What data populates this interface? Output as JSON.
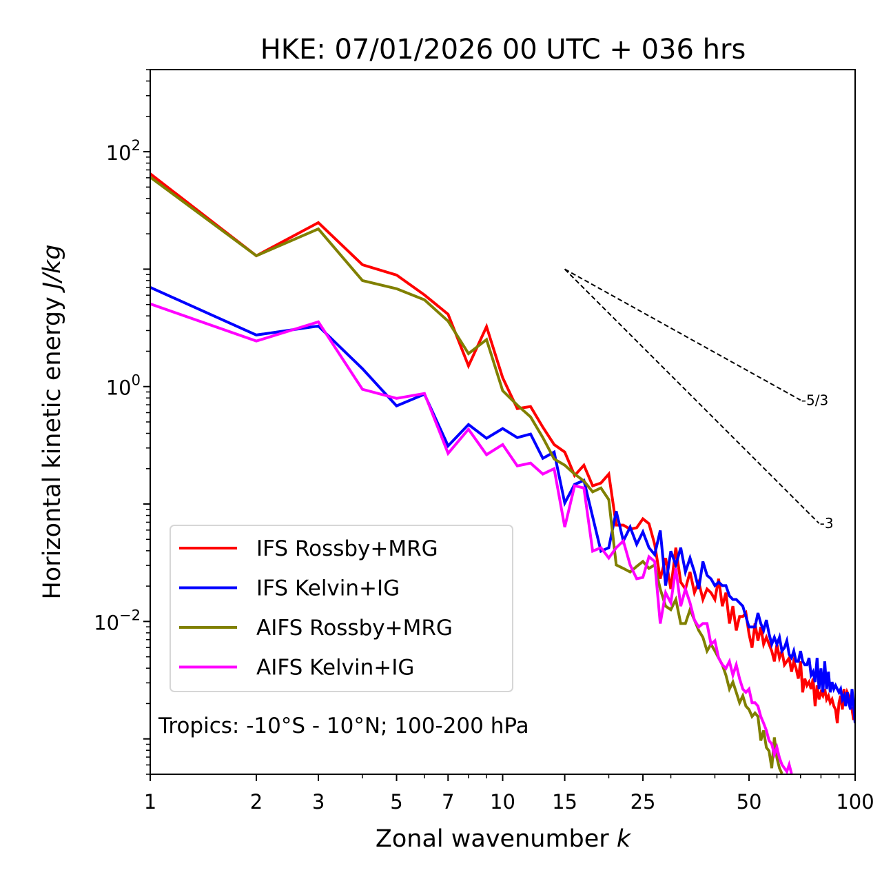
{
  "chart_data": {
    "type": "line",
    "title": "HKE: 07/01/2026 00 UTC + 036 hrs",
    "xlabel": "Zonal wavenumber",
    "xlabel_italic": "k",
    "ylabel": "Horizontal kinetic energy",
    "ylabel_italic": "J/kg",
    "xscale": "log",
    "yscale": "log",
    "xlim": [
      1,
      100
    ],
    "ylim": [
      0.0005,
      500
    ],
    "x_ticks": [
      {
        "value": 1,
        "label": "1"
      },
      {
        "value": 2,
        "label": "2"
      },
      {
        "value": 3,
        "label": "3"
      },
      {
        "value": 5,
        "label": "5"
      },
      {
        "value": 7,
        "label": "7"
      },
      {
        "value": 10,
        "label": "10"
      },
      {
        "value": 15,
        "label": "15"
      },
      {
        "value": 25,
        "label": "25"
      },
      {
        "value": 50,
        "label": "50"
      },
      {
        "value": 100,
        "label": "100"
      }
    ],
    "x_minor_ticks": [
      4,
      6,
      8,
      9,
      20,
      30,
      40,
      60,
      70,
      80,
      90
    ],
    "y_ticks": [
      {
        "value": 100,
        "base": "10",
        "exp": "2"
      },
      {
        "value": 1,
        "base": "10",
        "exp": "0"
      },
      {
        "value": 0.01,
        "base": "10",
        "exp": "−2"
      }
    ],
    "grid": false,
    "legend_position": "lower-left",
    "annotation": "Tropics: -10°S - 10°N; 100-200 hPa",
    "reference_lines": [
      {
        "label": "-5/3",
        "slope": -1.6667,
        "k_start": 15,
        "E_start": 10,
        "k_end": 70
      },
      {
        "label": "-3",
        "slope": -3,
        "k_start": 15,
        "E_start": 10,
        "k_end": 79
      }
    ],
    "series": [
      {
        "name": "IFS Rossby+MRG",
        "color": "#ff0000",
        "k_start": 1,
        "values": [
          64.9,
          13.0,
          24.9,
          10.9,
          8.91,
          6.03,
          4.13,
          1.5,
          3.24,
          1.19,
          0.649,
          0.676,
          0.451,
          0.321,
          0.277,
          0.175,
          0.214,
          0.143,
          0.151,
          0.18,
          0.0662,
          0.0662,
          0.0611,
          0.0628,
          0.0748,
          0.0681,
          0.0454,
          0.0231,
          0.0347,
          0.0189,
          0.0425,
          0.0216,
          0.0189,
          0.0264,
          0.0176,
          0.0216,
          0.0154,
          0.0189,
          0.0176,
          0.0154,
          0.0231,
          0.0135,
          0.0176,
          0.0096,
          0.0135,
          0.00839,
          0.011,
          0.011,
          0.0118,
          0.00784,
          0.00598,
          0.0096,
          0.00685,
          0.00897,
          0.0064,
          0.00733,
          0.0064,
          0.0056,
          0.00457,
          0.0064,
          0.00489,
          0.0056,
          0.00427,
          0.00457,
          0.00489,
          0.00373,
          0.00457,
          0.00399,
          0.00326,
          0.00457,
          0.00249,
          0.00326,
          0.00285,
          0.00305,
          0.00266,
          0.00326,
          0.0019,
          0.00285,
          0.00217,
          0.00249,
          0.00233,
          0.00266,
          0.00217,
          0.00233,
          0.00203,
          0.00217,
          0.0019,
          0.00178,
          0.00136,
          0.00203,
          0.00233,
          0.00178,
          0.00266,
          0.00203,
          0.00249,
          0.00233,
          0.0019,
          0.00178,
          0.00145,
          0.00178
        ]
      },
      {
        "name": "IFS Kelvin+IG",
        "color": "#0000ff",
        "k_start": 1,
        "values": [
          7.0,
          2.75,
          3.28,
          1.42,
          0.685,
          0.861,
          0.313,
          0.475,
          0.363,
          0.439,
          0.368,
          0.394,
          0.245,
          0.277,
          0.102,
          0.147,
          0.159,
          0.0778,
          0.0397,
          0.0425,
          0.0868,
          0.0485,
          0.0636,
          0.0454,
          0.0579,
          0.0425,
          0.0371,
          0.0595,
          0.0202,
          0.0397,
          0.0303,
          0.0425,
          0.0264,
          0.0347,
          0.0264,
          0.0189,
          0.0324,
          0.0247,
          0.0231,
          0.0202,
          0.0216,
          0.0202,
          0.0202,
          0.0165,
          0.0154,
          0.0154,
          0.0144,
          0.0135,
          0.011,
          0.00897,
          0.00897,
          0.00897,
          0.0118,
          0.0096,
          0.00839,
          0.0103,
          0.00784,
          0.0064,
          0.00733,
          0.0064,
          0.00733,
          0.0056,
          0.00598,
          0.00685,
          0.00523,
          0.00489,
          0.0056,
          0.00457,
          0.00457,
          0.0056,
          0.00457,
          0.00427,
          0.00427,
          0.00489,
          0.00349,
          0.00373,
          0.00305,
          0.00489,
          0.00266,
          0.00399,
          0.00249,
          0.00457,
          0.00266,
          0.00373,
          0.00249,
          0.00305,
          0.00266,
          0.00285,
          0.00266,
          0.00249,
          0.00266,
          0.00217,
          0.00233,
          0.0019,
          0.00249,
          0.00203,
          0.00178,
          0.00266,
          0.0019,
          0.00136
        ]
      },
      {
        "name": "AIFS Rossby+MRG",
        "color": "#808000",
        "k_start": 1,
        "values": [
          60.7,
          13.0,
          22.0,
          8.0,
          6.81,
          5.48,
          3.61,
          1.91,
          2.51,
          0.922,
          0.695,
          0.552,
          0.368,
          0.242,
          0.214,
          0.18,
          0.157,
          0.127,
          0.137,
          0.109,
          0.0303,
          0.0283,
          0.0264,
          0.0294,
          0.0324,
          0.0283,
          0.0303,
          0.0189,
          0.0135,
          0.0126,
          0.0154,
          0.0096,
          0.0096,
          0.0126,
          0.0103,
          0.00839,
          0.00733,
          0.0056,
          0.0064,
          0.0056,
          0.00489,
          0.00427,
          0.00349,
          0.00266,
          0.00305,
          0.00249,
          0.00203,
          0.00233,
          0.0019,
          0.00178,
          0.00155,
          0.00166,
          0.00155,
          0.000967,
          0.00118,
          0.000845,
          0.000789,
          0.000563,
          0.00103,
          0.00069,
          0.000563,
          0.000506
        ]
      },
      {
        "name": "AIFS Kelvin+IG",
        "color": "#ff00ff",
        "k_start": 1,
        "values": [
          5.06,
          2.44,
          3.56,
          0.948,
          0.794,
          0.874,
          0.27,
          0.433,
          0.263,
          0.321,
          0.211,
          0.223,
          0.18,
          0.2,
          0.0636,
          0.143,
          0.137,
          0.0397,
          0.0425,
          0.0347,
          0.0425,
          0.0485,
          0.0303,
          0.0231,
          0.0237,
          0.0356,
          0.0324,
          0.0096,
          0.0176,
          0.0144,
          0.0283,
          0.0135,
          0.0189,
          0.0144,
          0.0103,
          0.00897,
          0.0096,
          0.0096,
          0.0064,
          0.00685,
          0.00489,
          0.00427,
          0.00399,
          0.00457,
          0.00349,
          0.00427,
          0.00326,
          0.00266,
          0.00249,
          0.00266,
          0.00203,
          0.00203,
          0.0019,
          0.00155,
          0.00136,
          0.00118,
          0.000967,
          0.000904,
          0.000738,
          0.000845,
          0.00069,
          0.000603,
          0.000563,
          0.000527,
          0.000603,
          0.000506
        ]
      }
    ]
  }
}
